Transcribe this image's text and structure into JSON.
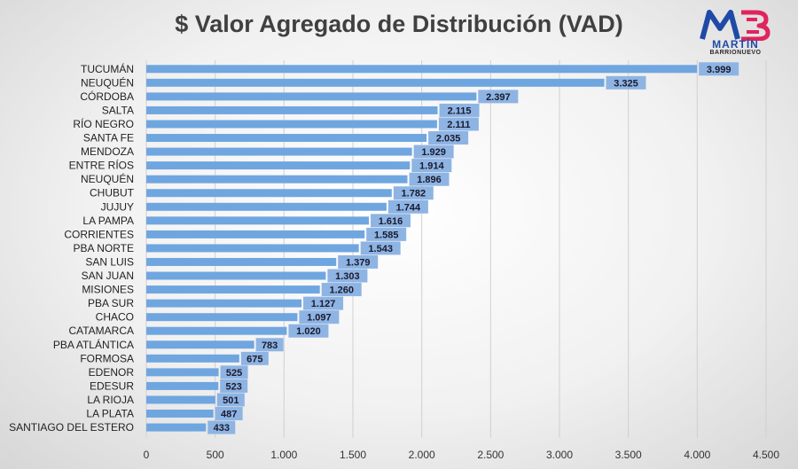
{
  "chart_data": {
    "type": "bar",
    "orientation": "horizontal",
    "title": "$ Valor Agregado de Distribución (VAD)",
    "categories": [
      "TUCUMÁN",
      "NEUQUÉN",
      "CÓRDOBA",
      "SALTA",
      "RÍO NEGRO",
      "SANTA FE",
      "MENDOZA",
      "ENTRE RÍOS",
      "NEUQUÉN",
      "CHUBUT",
      "JUJUY",
      "LA PAMPA",
      "CORRIENTES",
      "PBA NORTE",
      "SAN LUIS",
      "SAN JUAN",
      "MISIONES",
      "PBA SUR",
      "CHACO",
      "CATAMARCA",
      "PBA ATLÁNTICA",
      "FORMOSA",
      "EDENOR",
      "EDESUR",
      "LA RIOJA",
      "LA PLATA",
      "SANTIAGO DEL ESTERO"
    ],
    "values": [
      3999,
      3325,
      2397,
      2115,
      2111,
      2035,
      1929,
      1914,
      1896,
      1782,
      1744,
      1616,
      1585,
      1543,
      1379,
      1303,
      1260,
      1127,
      1097,
      1020,
      783,
      675,
      525,
      523,
      501,
      487,
      433
    ],
    "value_labels": [
      "3.999",
      "3.325",
      "2.397",
      "2.115",
      "2.111",
      "2.035",
      "1.929",
      "1.914",
      "1.896",
      "1.782",
      "1.744",
      "1.616",
      "1.585",
      "1.543",
      "1.379",
      "1.303",
      "1.260",
      "1.127",
      "1.097",
      "1.020",
      "783",
      "675",
      "525",
      "523",
      "501",
      "487",
      "433"
    ],
    "xticks": [
      0,
      500,
      1000,
      1500,
      2000,
      2500,
      3000,
      3500,
      4000,
      4500
    ],
    "xtick_labels": [
      "0",
      "500",
      "1.000",
      "1.500",
      "2.000",
      "2.500",
      "3.000",
      "3.500",
      "4.000",
      "4.500"
    ],
    "xlim": [
      0,
      4500
    ],
    "grid": true,
    "legend": "none",
    "colors": {
      "bar": "#6fa6e0",
      "label_box": "#8eb4e3",
      "grid": "#d0d0d0"
    }
  },
  "logo": {
    "initials": "MB",
    "brand": "MARTÍN",
    "sub": "BARRIONUEVO"
  }
}
